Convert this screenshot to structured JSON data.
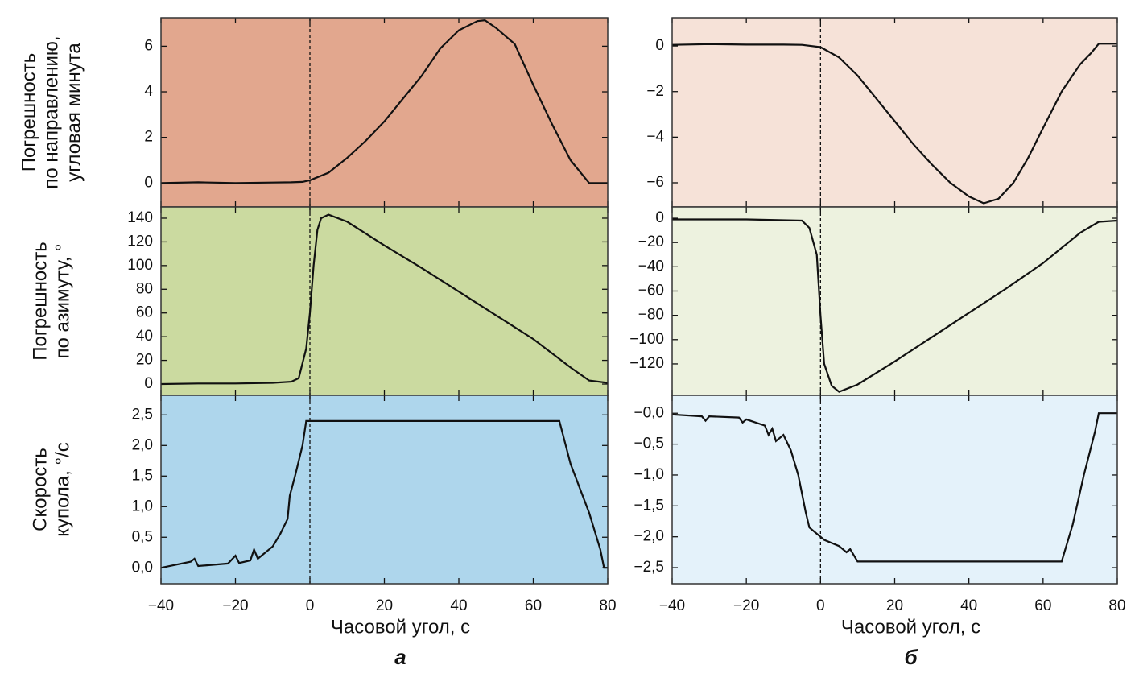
{
  "chart_data": [
    {
      "type": "line",
      "background": "#e2a78e",
      "line_color": "#111111",
      "vline": 0,
      "y_label": [
        "Погрешность",
        "по направлению,",
        "угловая минута"
      ],
      "xlim": [
        -40,
        80
      ],
      "xticks": [
        {
          "value": -40,
          "label": "−40"
        },
        {
          "value": -20,
          "label": "−20"
        },
        0,
        20,
        40,
        60,
        80
      ],
      "ylim": [
        -1.05,
        7.25
      ],
      "yticks": [
        0,
        2,
        4,
        6
      ],
      "x": [
        -40,
        -30,
        -20,
        -10,
        -5,
        -2,
        0,
        5,
        10,
        15,
        20,
        25,
        30,
        35,
        40,
        45,
        47,
        50,
        55,
        60,
        65,
        70,
        73,
        75,
        80
      ],
      "values": [
        0.0,
        0.03,
        0.0,
        0.02,
        0.03,
        0.05,
        0.12,
        0.45,
        1.1,
        1.85,
        2.7,
        3.7,
        4.7,
        5.9,
        6.7,
        7.1,
        7.14,
        6.8,
        6.1,
        4.3,
        2.6,
        1.0,
        0.4,
        0.0,
        0.0
      ]
    },
    {
      "type": "line",
      "background": "#cbdaa0",
      "line_color": "#111111",
      "vline": 0,
      "y_label": [
        "Погрешность",
        "по азимуту, °"
      ],
      "xlim": [
        -40,
        80
      ],
      "xticks": [
        {
          "value": -40,
          "label": "−40"
        },
        {
          "value": -20,
          "label": "−20"
        },
        0,
        20,
        40,
        60,
        80
      ],
      "ylim": [
        -9.5,
        149.5
      ],
      "yticks": [
        0,
        20,
        40,
        60,
        80,
        100,
        120,
        140
      ],
      "x": [
        -40,
        -30,
        -20,
        -10,
        -5,
        -3,
        -1,
        0,
        1,
        2,
        3,
        5,
        10,
        20,
        30,
        40,
        50,
        60,
        70,
        75,
        80
      ],
      "values": [
        0,
        0.5,
        0.5,
        1,
        2,
        5,
        30,
        60,
        100,
        130,
        140,
        143,
        137,
        117,
        98,
        78,
        58,
        38,
        14,
        3,
        1
      ]
    },
    {
      "type": "line",
      "background": "#aed6ec",
      "line_color": "#111111",
      "vline": 0,
      "y_label": [
        "Скорость",
        "купола, °/с"
      ],
      "x_label": "Часовой угол, с",
      "panel_label": "а",
      "xlim": [
        -40,
        80
      ],
      "xticks": [
        {
          "value": -40,
          "label": "−40"
        },
        {
          "value": -20,
          "label": "−20"
        },
        0,
        20,
        40,
        60,
        80
      ],
      "ylim": [
        -0.26,
        2.82
      ],
      "yticks": [
        {
          "value": 0,
          "label": "0,0"
        },
        {
          "value": 0.5,
          "label": "0,5"
        },
        {
          "value": 1,
          "label": "1,0"
        },
        {
          "value": 1.5,
          "label": "1,5"
        },
        {
          "value": 2,
          "label": "2,0"
        },
        {
          "value": 2.5,
          "label": "2,5"
        }
      ],
      "x": [
        -40,
        -32,
        -31,
        -30,
        -22,
        -20,
        -19,
        -16,
        -15,
        -14,
        -10,
        -8,
        -6,
        -5.4,
        -4,
        -2,
        -1,
        67,
        70,
        75,
        78,
        79,
        80
      ],
      "values": [
        0.0,
        0.1,
        0.15,
        0.03,
        0.07,
        0.2,
        0.08,
        0.12,
        0.3,
        0.15,
        0.35,
        0.55,
        0.8,
        1.18,
        1.5,
        2.0,
        2.4,
        2.4,
        1.7,
        0.9,
        0.3,
        0.0,
        0.0
      ]
    },
    {
      "type": "line",
      "background": "#f6e2d8",
      "line_color": "#111111",
      "vline": 0,
      "xlim": [
        -40,
        80
      ],
      "xticks": [
        {
          "value": -40,
          "label": "−40"
        },
        {
          "value": -20,
          "label": "−20"
        },
        0,
        20,
        40,
        60,
        80
      ],
      "ylim": [
        -7.06,
        1.24
      ],
      "yticks": [
        0,
        {
          "value": -2,
          "label": "−2"
        },
        {
          "value": -4,
          "label": "−4"
        },
        {
          "value": -6,
          "label": "−6"
        }
      ],
      "x": [
        -40,
        -30,
        -20,
        -10,
        -5,
        0,
        5,
        10,
        15,
        20,
        25,
        30,
        35,
        40,
        44,
        48,
        52,
        56,
        60,
        65,
        70,
        73,
        75,
        80
      ],
      "values": [
        0.05,
        0.08,
        0.06,
        0.06,
        0.05,
        -0.05,
        -0.5,
        -1.3,
        -2.3,
        -3.3,
        -4.3,
        -5.2,
        -6.0,
        -6.6,
        -6.9,
        -6.7,
        -6.0,
        -4.9,
        -3.6,
        -2.0,
        -0.8,
        -0.3,
        0.1,
        0.1
      ]
    },
    {
      "type": "line",
      "background": "#edf2df",
      "line_color": "#111111",
      "vline": 0,
      "xlim": [
        -40,
        80
      ],
      "xticks": [
        {
          "value": -40,
          "label": "−40"
        },
        {
          "value": -20,
          "label": "−20"
        },
        0,
        20,
        40,
        60,
        80
      ],
      "ylim": [
        -145.9,
        9.3
      ],
      "yticks": [
        0,
        {
          "value": -20,
          "label": "−20"
        },
        {
          "value": -40,
          "label": "−40"
        },
        {
          "value": -60,
          "label": "−60"
        },
        {
          "value": -80,
          "label": "−80"
        },
        {
          "value": -100,
          "label": "−100"
        },
        {
          "value": -120,
          "label": "−120"
        }
      ],
      "x": [
        -40,
        -20,
        -5,
        -3,
        -1,
        0,
        1,
        3,
        5,
        10,
        20,
        30,
        40,
        50,
        60,
        70,
        75,
        80
      ],
      "values": [
        -1,
        -1,
        -2,
        -8,
        -30,
        -80,
        -120,
        -138,
        -143,
        -137,
        -118,
        -98,
        -78,
        -58,
        -37,
        -12,
        -3,
        -2
      ]
    },
    {
      "type": "line",
      "background": "#e4f2fa",
      "line_color": "#111111",
      "vline": 0,
      "x_label": "Часовой угол, с",
      "panel_label": "б",
      "xlim": [
        -40,
        80
      ],
      "xticks": [
        {
          "value": -40,
          "label": "−40"
        },
        {
          "value": -20,
          "label": "−20"
        },
        0,
        20,
        40,
        60,
        80
      ],
      "ylim": [
        -2.76,
        0.29
      ],
      "yticks": [
        {
          "value": 0,
          "label": "−0,0"
        },
        {
          "value": -0.5,
          "label": "−0,5"
        },
        {
          "value": -1,
          "label": "−1,0"
        },
        {
          "value": -1.5,
          "label": "−1,5"
        },
        {
          "value": -2,
          "label": "−2,0"
        },
        {
          "value": -2.5,
          "label": "−2,5"
        }
      ],
      "x": [
        -40,
        -32,
        -31,
        -30,
        -22,
        -21,
        -20,
        -15,
        -14,
        -13,
        -12,
        -10,
        -8,
        -6,
        -4,
        -3,
        -1,
        1,
        5,
        7,
        8,
        10,
        65,
        68,
        71,
        74,
        75,
        80
      ],
      "values": [
        -0.02,
        -0.05,
        -0.12,
        -0.05,
        -0.07,
        -0.15,
        -0.1,
        -0.2,
        -0.35,
        -0.25,
        -0.45,
        -0.35,
        -0.6,
        -1.0,
        -1.6,
        -1.85,
        -1.95,
        -2.05,
        -2.15,
        -2.25,
        -2.2,
        -2.4,
        -2.4,
        -1.8,
        -1.0,
        -0.3,
        0.0,
        0.0
      ]
    }
  ]
}
